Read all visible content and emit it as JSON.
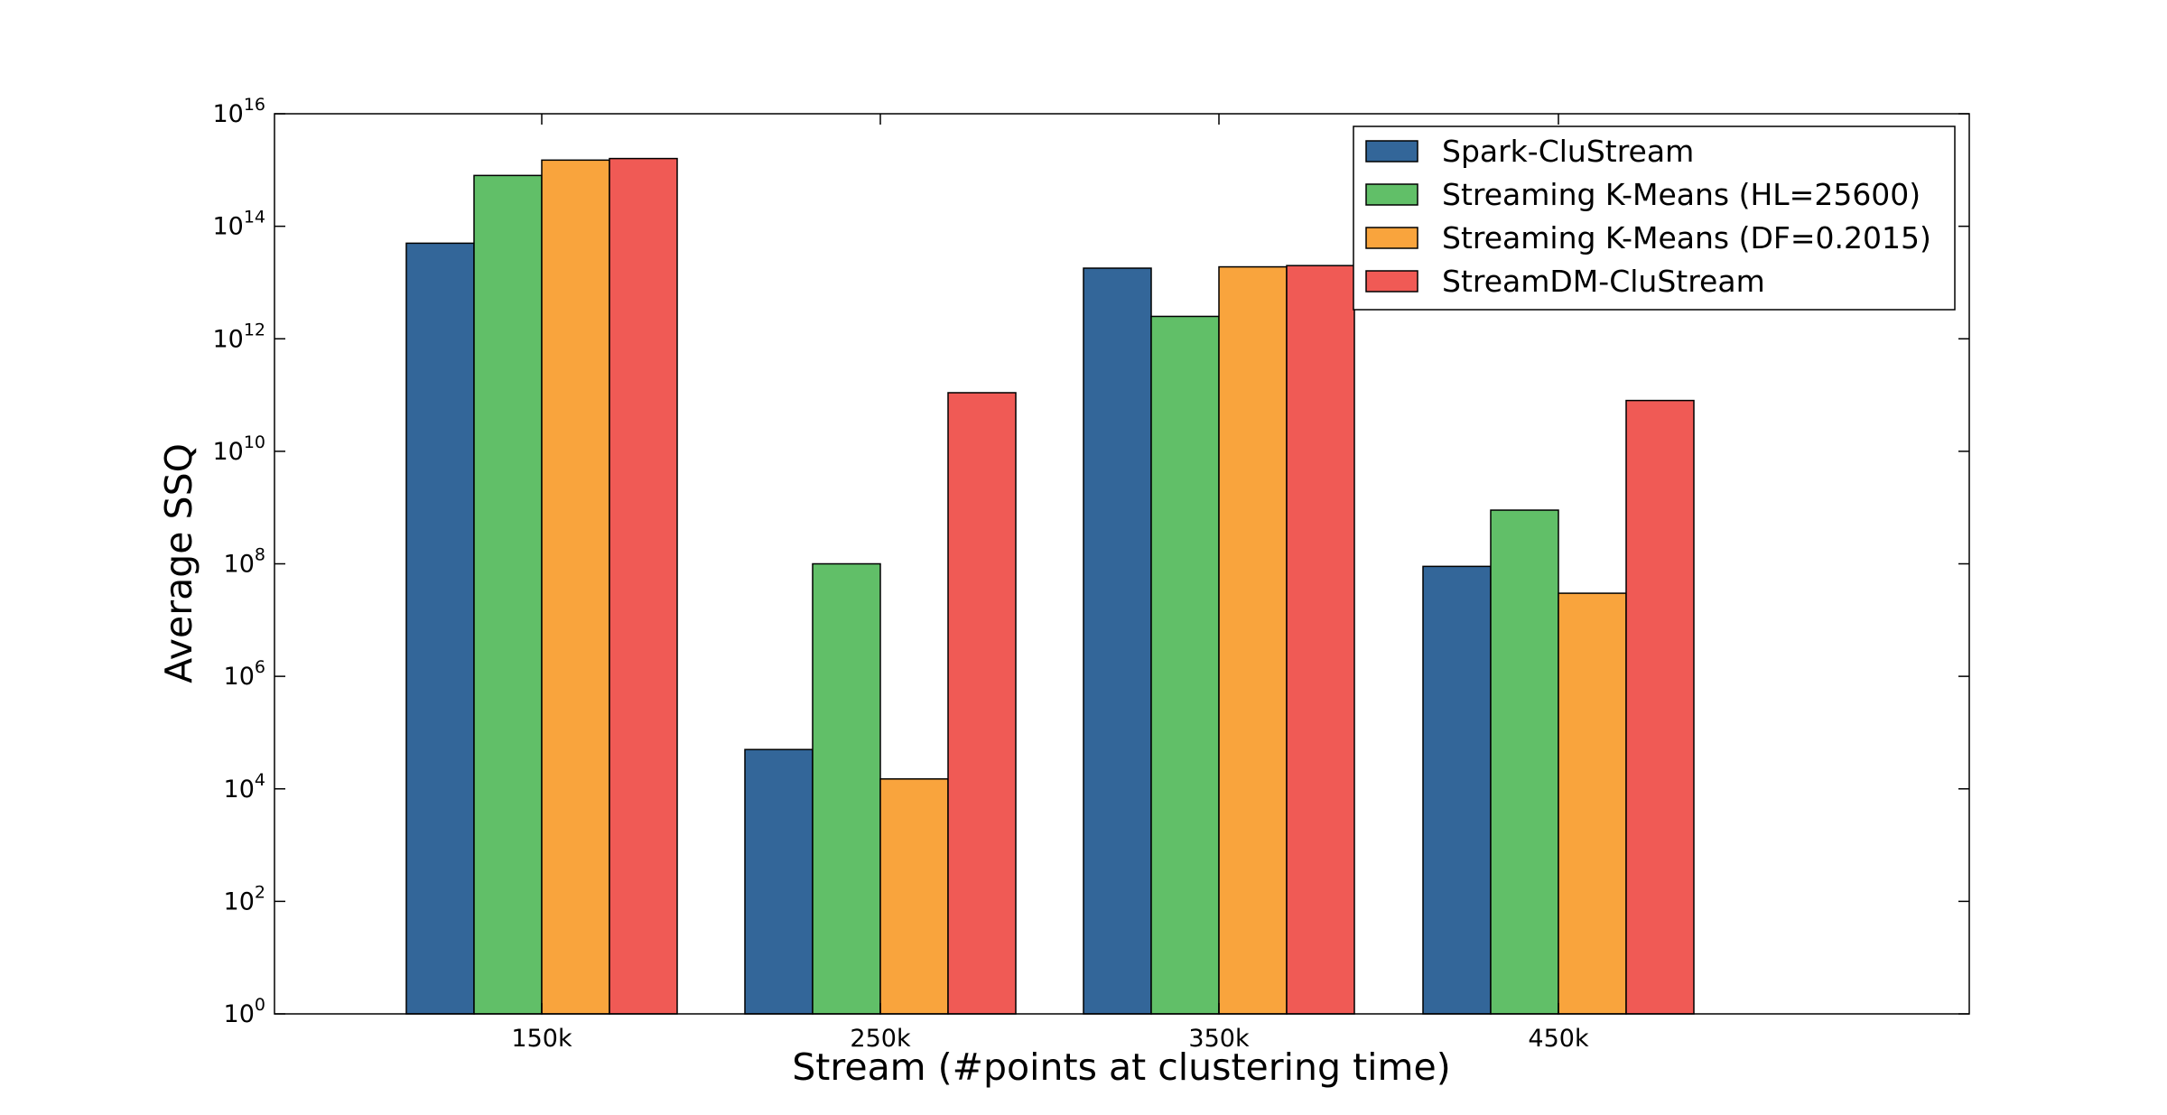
{
  "chart_data": {
    "type": "bar",
    "title": "",
    "xlabel": "Stream (#points at clustering time)",
    "ylabel": "Average SSQ",
    "yscale": "log",
    "ylim": [
      1,
      1e+16
    ],
    "categories": [
      "150k",
      "250k",
      "350k",
      "450k"
    ],
    "series": [
      {
        "name": "Spark-CluStream",
        "color": "#336699",
        "values": [
          50000000000000.0,
          50000.0,
          18000000000000.0,
          90000000.0
        ]
      },
      {
        "name": "Streaming K-Means (HL=25600)",
        "color": "#61bf68",
        "values": [
          800000000000000.0,
          100000000.0,
          2500000000000.0,
          900000000.0
        ]
      },
      {
        "name": "Streaming K-Means (DF=0.2015)",
        "color": "#f9a43d",
        "values": [
          1500000000000000.0,
          15000.0,
          19000000000000.0,
          30000000.0
        ]
      },
      {
        "name": "StreamDM-CluStream",
        "color": "#f05a55",
        "values": [
          1600000000000000.0,
          110000000000.0,
          20000000000000.0,
          80000000000.0
        ]
      }
    ],
    "yticks": [
      {
        "base": "10",
        "exp": "0"
      },
      {
        "base": "10",
        "exp": "2"
      },
      {
        "base": "10",
        "exp": "4"
      },
      {
        "base": "10",
        "exp": "6"
      },
      {
        "base": "10",
        "exp": "8"
      },
      {
        "base": "10",
        "exp": "10"
      },
      {
        "base": "10",
        "exp": "12"
      },
      {
        "base": "10",
        "exp": "14"
      },
      {
        "base": "10",
        "exp": "16"
      }
    ],
    "legend_position": "top-right",
    "grid": false
  }
}
